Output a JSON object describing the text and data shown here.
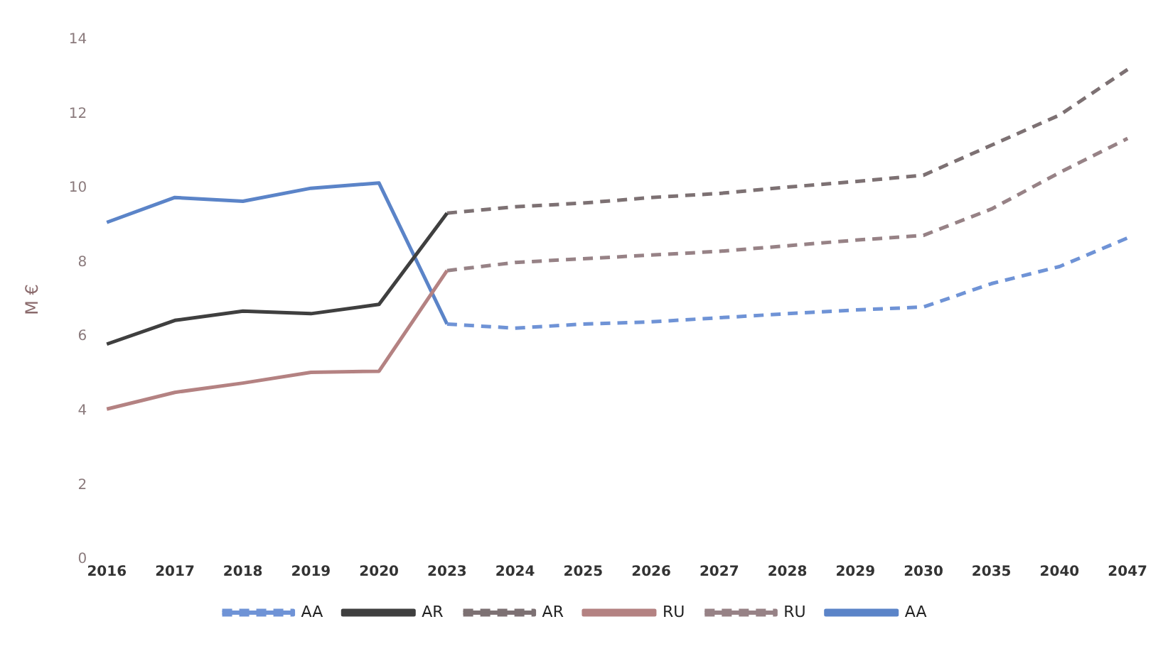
{
  "chart_data": {
    "type": "line",
    "ylabel": "M €",
    "categories": [
      "2016",
      "2017",
      "2018",
      "2019",
      "2020",
      "2023",
      "2024",
      "2025",
      "2026",
      "2027",
      "2028",
      "2029",
      "2030",
      "2035",
      "2040",
      "2047"
    ],
    "ylim": [
      0,
      14
    ],
    "yticks": [
      0,
      2,
      4,
      6,
      8,
      10,
      12,
      14
    ],
    "grid": false,
    "legend": "bottom",
    "marker": "none",
    "series": [
      {
        "name": "AA",
        "color": "#6f93d6",
        "line_style": "dashed",
        "values": [
          null,
          null,
          null,
          null,
          null,
          6.34,
          6.23,
          6.34,
          6.4,
          6.51,
          6.62,
          6.72,
          6.8,
          7.43,
          7.89,
          8.66
        ]
      },
      {
        "name": "AR",
        "color": "#3f3f3f",
        "line_style": "solid",
        "values": [
          5.8,
          6.44,
          6.69,
          6.62,
          6.87,
          9.33,
          null,
          null,
          null,
          null,
          null,
          null,
          null,
          null,
          null,
          null
        ]
      },
      {
        "name": "AR",
        "color": "#7d7173",
        "line_style": "dashed",
        "values": [
          null,
          null,
          null,
          null,
          null,
          9.33,
          9.5,
          9.6,
          9.75,
          9.86,
          10.03,
          10.18,
          10.35,
          11.16,
          11.97,
          13.2
        ]
      },
      {
        "name": "RU",
        "color": "#b48282",
        "line_style": "solid",
        "values": [
          4.05,
          4.5,
          4.75,
          5.04,
          5.07,
          7.78,
          null,
          null,
          null,
          null,
          null,
          null,
          null,
          null,
          null,
          null
        ]
      },
      {
        "name": "RU",
        "color": "#978286",
        "line_style": "dashed",
        "values": [
          null,
          null,
          null,
          null,
          null,
          7.78,
          8.0,
          8.1,
          8.2,
          8.3,
          8.45,
          8.6,
          8.73,
          9.44,
          10.42,
          11.34
        ]
      },
      {
        "name": "AA",
        "color": "#5b84c8",
        "line_style": "solid",
        "values": [
          9.08,
          9.75,
          9.65,
          10.0,
          10.14,
          6.34,
          null,
          null,
          null,
          null,
          null,
          null,
          null,
          null,
          null,
          null
        ]
      }
    ]
  }
}
